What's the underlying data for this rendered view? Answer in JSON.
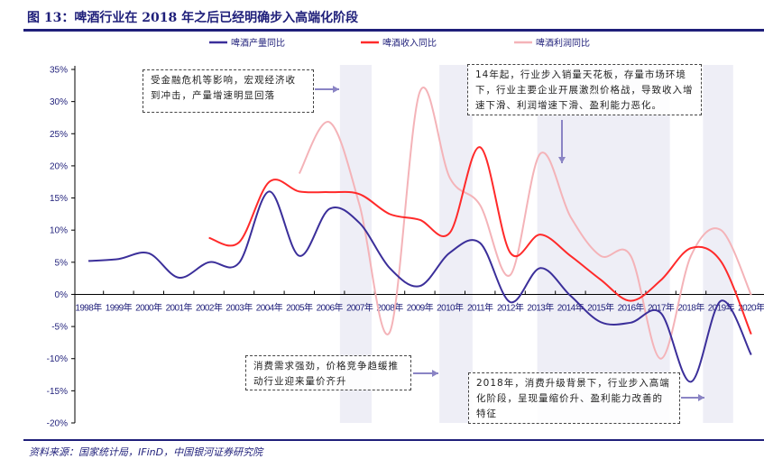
{
  "title": "图 13：啤酒行业在 2018 年之后已经明确步入高端化阶段",
  "source": "资料来源：国家统计局，IFinD，中国银河证券研究院",
  "colors": {
    "production": "#3b2f9a",
    "revenue": "#ff2a2a",
    "profit": "#f4b3b8",
    "band": "#eeeef6",
    "navy": "#1f1f7a"
  },
  "annotations": [
    "受金融危机等影响，宏观经济收到冲击，产量增速明显回落",
    "14年起，行业步入销量天花板，存量市场环境下，行业主要企业开展激烈价格战，导致收入增速下滑、利润增速下滑、盈利能力恶化。",
    "消费需求强劲，价格竞争趋缓推动行业迎来量价齐升",
    "2018年，消费升级背景下，行业步入高端化阶段，呈现量缩价升、盈利能力改善的特征"
  ],
  "chart_data": {
    "type": "line",
    "title": "图 13：啤酒行业在 2018 年之后已经明确步入高端化阶段",
    "xlabel": "",
    "ylabel": "",
    "categories": [
      "1998年",
      "1999年",
      "2000年",
      "2001年",
      "2002年",
      "2003年",
      "2004年",
      "2005年",
      "2006年",
      "2007年",
      "2008年",
      "2009年",
      "2010年",
      "2011年",
      "2012年",
      "2013年",
      "2014年",
      "2015年",
      "2016年",
      "2017年",
      "2018年",
      "2019年",
      "2020年"
    ],
    "yticks": [
      "35%",
      "30%",
      "25%",
      "20%",
      "15%",
      "10%",
      "5%",
      "0%",
      "-5%",
      "-10%",
      "-15%",
      "-20%"
    ],
    "ylim": [
      -20,
      35
    ],
    "legend_position": "top",
    "series": [
      {
        "name": "啤酒产量同比",
        "values": [
          5.2,
          5.5,
          6.4,
          2.6,
          5.0,
          4.9,
          16.0,
          6.0,
          13.3,
          11.1,
          4.1,
          1.3,
          6.5,
          8.0,
          -1.2,
          4.1,
          -0.2,
          -4.3,
          -4.4,
          -2.9,
          -13.6,
          -1.0,
          -9.4
        ]
      },
      {
        "name": "啤酒收入同比",
        "values": [
          null,
          null,
          null,
          null,
          8.8,
          8.1,
          17.5,
          16.0,
          15.9,
          15.6,
          12.5,
          11.6,
          9.6,
          22.9,
          6.5,
          9.3,
          6.0,
          2.3,
          -1.0,
          2.2,
          7.2,
          5.1,
          -6.2
        ]
      },
      {
        "name": "啤酒利润同比",
        "values": [
          null,
          null,
          null,
          null,
          null,
          null,
          null,
          18.8,
          26.8,
          13.9,
          -5.9,
          31.5,
          18.1,
          13.9,
          3.0,
          21.9,
          12.1,
          6.0,
          6.0,
          -10.0,
          6.0,
          10.0,
          -0.1
        ]
      }
    ],
    "highlight_bands": [
      [
        2006.35,
        2007.4
      ],
      [
        2009.65,
        2010.75
      ],
      [
        2012.9,
        2017.3
      ],
      [
        2018.4,
        2019.4
      ]
    ]
  }
}
